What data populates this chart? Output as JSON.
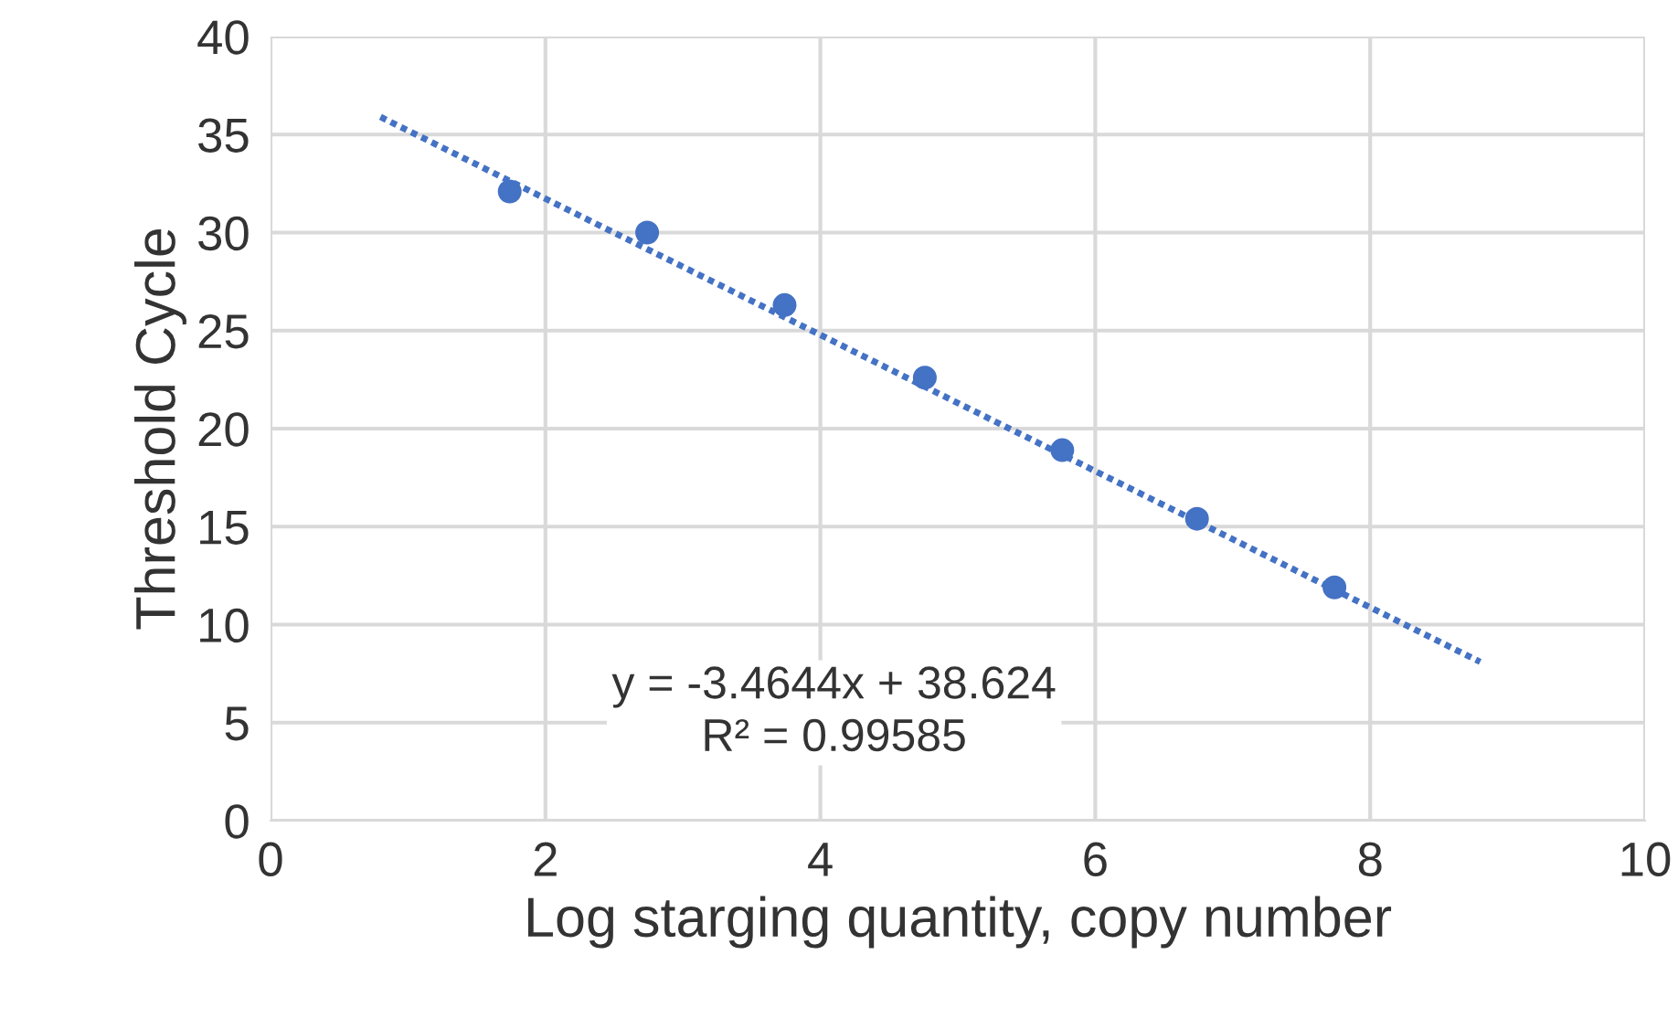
{
  "chart_data": {
    "type": "scatter",
    "xlabel": "Log starging quantity, copy number",
    "ylabel": "Threshold Cycle",
    "xlim": [
      0,
      10
    ],
    "xticks": [
      0,
      2,
      4,
      6,
      8,
      10
    ],
    "ylim": [
      0,
      40
    ],
    "yticks": [
      0,
      5,
      10,
      15,
      20,
      25,
      30,
      35,
      40
    ],
    "grid": true,
    "series": [
      {
        "marker": "circle",
        "color": "#4472c4",
        "x": [
          1.74,
          2.74,
          3.74,
          4.76,
          5.76,
          6.74,
          7.74
        ],
        "values": [
          32.1,
          30.0,
          26.3,
          22.6,
          18.9,
          15.4,
          11.9
        ]
      },
      {
        "type": "line",
        "marker": "none",
        "color": "#4472c4",
        "line_style": "dotted",
        "x": [
          0.8,
          8.8
        ],
        "values": [
          35.9,
          8.1
        ]
      }
    ],
    "annotations": [
      "y = -3.4644x + 38.624\nR² = 0.99585"
    ]
  }
}
